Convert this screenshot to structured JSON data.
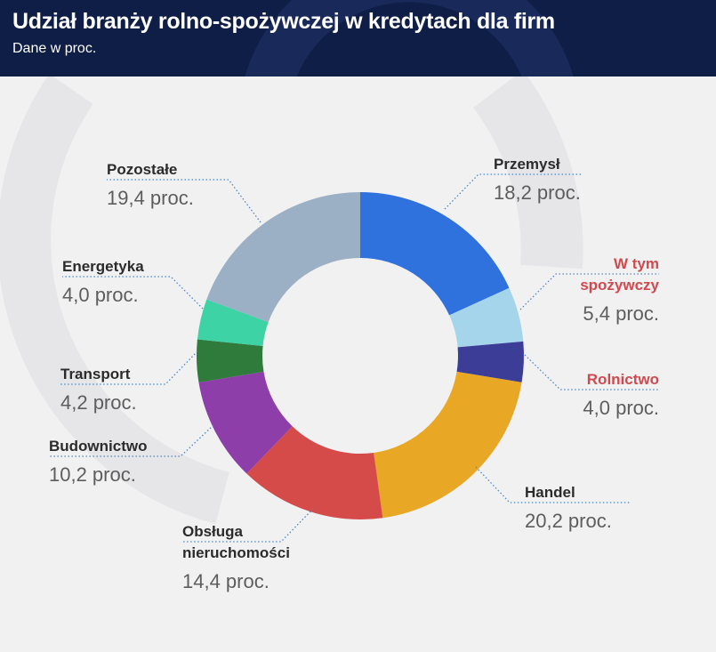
{
  "header": {
    "title": "Udział branży rolno-spożywczej w kredytach dla firm",
    "subtitle": "Dane w proc."
  },
  "chart_data": {
    "type": "donut",
    "title": "Udział branży rolno-spożywczej w kredytach dla firm",
    "subtitle": "Dane w proc.",
    "unit": "proc.",
    "slices": [
      {
        "name": "Przemysł",
        "value": 18.2,
        "label": "18,2 proc.",
        "color": "#2f72dd",
        "highlight": false
      },
      {
        "name": "W tym spożywczy",
        "value": 5.4,
        "label": "5,4 proc.",
        "color": "#a4d5ea",
        "highlight": true
      },
      {
        "name": "Rolnictwo",
        "value": 4.0,
        "label": "4,0 proc.",
        "color": "#3b3d96",
        "highlight": true
      },
      {
        "name": "Handel",
        "value": 20.2,
        "label": "20,2 proc.",
        "color": "#e8a825",
        "highlight": false
      },
      {
        "name": "Obsługa nieruchomości",
        "value": 14.4,
        "label": "14,4 proc.",
        "color": "#d54b4a",
        "highlight": false
      },
      {
        "name": "Budownictwo",
        "value": 10.2,
        "label": "10,2 proc.",
        "color": "#8e3ea8",
        "highlight": false
      },
      {
        "name": "Transport",
        "value": 4.2,
        "label": "4,2 proc.",
        "color": "#2f7b3c",
        "highlight": false
      },
      {
        "name": "Energetyka",
        "value": 4.0,
        "label": "4,0 proc.",
        "color": "#3ed3a5",
        "highlight": false
      },
      {
        "name": "Pozostałe",
        "value": 19.4,
        "label": "19,4 proc.",
        "color": "#9bafc5",
        "highlight": false
      }
    ]
  }
}
